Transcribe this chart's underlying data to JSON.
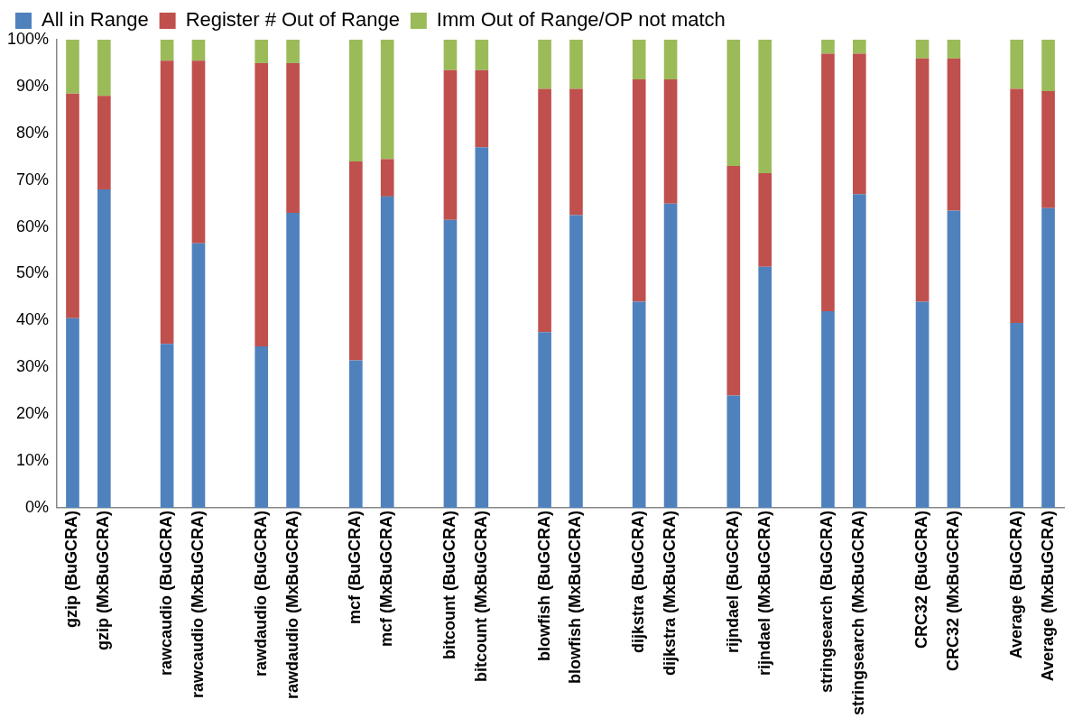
{
  "chart_data": {
    "type": "bar",
    "stacked": true,
    "legend": "top",
    "grid": false,
    "categories": [
      "gzip (BuGCRA)",
      "gzip (MxBuGCRA)",
      null,
      "rawcaudio (BuGCRA)",
      "rawcaudio (MxBuGCRA)",
      null,
      "rawdaudio (BuGCRA)",
      "rawdaudio (MxBuGCRA)",
      null,
      "mcf (BuGCRA)",
      "mcf (MxBuGCRA)",
      null,
      "bitcount (BuGCRA)",
      "bitcount (MxBuGCRA)",
      null,
      "blowfish (BuGCRA)",
      "blowfish (MxBuGCRA)",
      null,
      "dijkstra (BuGCRA)",
      "dijkstra (MxBuGCRA)",
      null,
      "rijndael (BuGCRA)",
      "rijndael (MxBuGCRA)",
      null,
      "stringsearch (BuGCRA)",
      "stringsearch (MxBuGCRA)",
      null,
      "CRC32 (BuGCRA)",
      "CRC32 (MxBuGCRA)",
      null,
      "Average (BuGCRA)",
      "Average (MxBuGCRA)"
    ],
    "series": [
      {
        "name": "All in Range",
        "color": "#4f81bd",
        "values": [
          40.5,
          68,
          null,
          35,
          56.5,
          null,
          34.5,
          63,
          null,
          31.5,
          66.5,
          null,
          61.5,
          77,
          null,
          37.5,
          62.5,
          null,
          44,
          65,
          null,
          24,
          51.5,
          null,
          42,
          67,
          null,
          44,
          63.5,
          null,
          39.5,
          64
        ]
      },
      {
        "name": "Register # Out of Range",
        "color": "#c0504d",
        "values": [
          48,
          20,
          null,
          60.5,
          39,
          null,
          60.5,
          32,
          null,
          42.5,
          8,
          null,
          32,
          16.5,
          null,
          52,
          27,
          null,
          47.5,
          26.5,
          null,
          49,
          20,
          null,
          55,
          30,
          null,
          52,
          32.5,
          null,
          50,
          25
        ]
      },
      {
        "name": "Imm Out of Range/OP not match",
        "color": "#9bbb59",
        "values": [
          11.5,
          12,
          null,
          4.5,
          4.5,
          null,
          5,
          5,
          null,
          26,
          25.5,
          null,
          6.5,
          6.5,
          null,
          10.5,
          10.5,
          null,
          8.5,
          8.5,
          null,
          27,
          28.5,
          null,
          3,
          3,
          null,
          4,
          4,
          null,
          10.5,
          11
        ]
      }
    ],
    "ylim": [
      0,
      100
    ],
    "yticks": [
      {
        "value": 0,
        "label": "0%"
      },
      {
        "value": 10,
        "label": "10%"
      },
      {
        "value": 20,
        "label": "20%"
      },
      {
        "value": 30,
        "label": "30%"
      },
      {
        "value": 40,
        "label": "40%"
      },
      {
        "value": 50,
        "label": "50%"
      },
      {
        "value": 60,
        "label": "60%"
      },
      {
        "value": 70,
        "label": "70%"
      },
      {
        "value": 80,
        "label": "80%"
      },
      {
        "value": 90,
        "label": "90%"
      },
      {
        "value": 100,
        "label": "100%"
      }
    ]
  }
}
